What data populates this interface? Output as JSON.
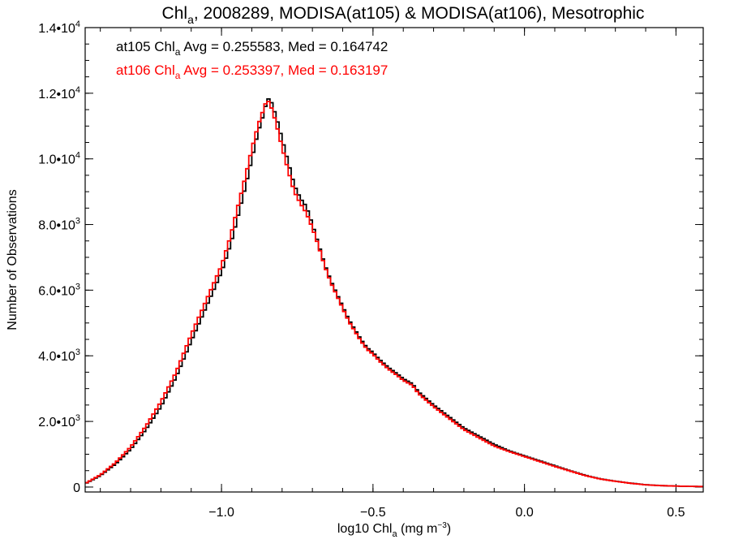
{
  "chart_data": {
    "type": "line",
    "title": {
      "pre": "Chl",
      "sub": "a",
      "post": ", 2008289, MODISA(at105) & MODISA(at106), Mesotrophic"
    },
    "xlabel": {
      "pre": "log10 Chl",
      "sub": "a",
      "post": " (mg m",
      "sup": "−3",
      "end": ")"
    },
    "ylabel": "Number of Observations",
    "xlim": [
      -1.45,
      0.59
    ],
    "ylim": [
      -150,
      14000
    ],
    "x_ticks": [
      {
        "value": -1.0,
        "label": "−1.0"
      },
      {
        "value": -0.5,
        "label": "−0.5"
      },
      {
        "value": 0.0,
        "label": "0.0"
      },
      {
        "value": 0.5,
        "label": "0.5"
      }
    ],
    "x_minor_step": 0.1,
    "y_ticks": [
      {
        "value": 0,
        "base": "0",
        "exp": ""
      },
      {
        "value": 2000,
        "base": "2.0•10",
        "exp": "3"
      },
      {
        "value": 4000,
        "base": "4.0•10",
        "exp": "3"
      },
      {
        "value": 6000,
        "base": "6.0•10",
        "exp": "3"
      },
      {
        "value": 8000,
        "base": "8.0•10",
        "exp": "3"
      },
      {
        "value": 10000,
        "base": "1.0•10",
        "exp": "4"
      },
      {
        "value": 12000,
        "base": "1.2•10",
        "exp": "4"
      },
      {
        "value": 14000,
        "base": "1.4•10",
        "exp": "4"
      }
    ],
    "y_minor_step": 500,
    "annotations": [
      {
        "pre": "at105 Chl",
        "sub": "a",
        "post": " Avg = 0.255583, Med = 0.164742",
        "color": "#000000"
      },
      {
        "pre": "at106 Chl",
        "sub": "a",
        "post": " Avg = 0.253397, Med = 0.163197",
        "color": "#ff0000"
      }
    ],
    "step": 0.01,
    "series": [
      {
        "color": "#000000",
        "x": [
          -1.45,
          -1.4,
          -1.35,
          -1.3,
          -1.25,
          -1.2,
          -1.15,
          -1.1,
          -1.05,
          -1.0,
          -0.97,
          -0.95,
          -0.92,
          -0.9,
          -0.88,
          -0.86,
          -0.85,
          -0.84,
          -0.82,
          -0.8,
          -0.78,
          -0.76,
          -0.74,
          -0.72,
          -0.7,
          -0.68,
          -0.66,
          -0.64,
          -0.62,
          -0.6,
          -0.58,
          -0.56,
          -0.54,
          -0.52,
          -0.5,
          -0.48,
          -0.45,
          -0.42,
          -0.4,
          -0.37,
          -0.35,
          -0.3,
          -0.25,
          -0.2,
          -0.15,
          -0.1,
          -0.05,
          0.0,
          0.05,
          0.1,
          0.15,
          0.2,
          0.25,
          0.3,
          0.35,
          0.4,
          0.45,
          0.5,
          0.55,
          0.59
        ],
        "values": [
          100,
          350,
          700,
          1150,
          1750,
          2450,
          3350,
          4450,
          5500,
          6550,
          7400,
          8100,
          9200,
          10000,
          10800,
          11400,
          11800,
          11850,
          11300,
          10600,
          9900,
          9200,
          8800,
          8550,
          8000,
          7400,
          6800,
          6300,
          5900,
          5500,
          5100,
          4800,
          4500,
          4250,
          4100,
          3900,
          3650,
          3450,
          3300,
          3150,
          2900,
          2500,
          2150,
          1800,
          1550,
          1300,
          1100,
          950,
          800,
          650,
          500,
          360,
          250,
          180,
          120,
          70,
          45,
          30,
          20,
          15
        ]
      },
      {
        "color": "#ff0000",
        "x": [
          -1.45,
          -1.4,
          -1.35,
          -1.3,
          -1.25,
          -1.2,
          -1.15,
          -1.1,
          -1.05,
          -1.0,
          -0.97,
          -0.95,
          -0.92,
          -0.9,
          -0.88,
          -0.86,
          -0.85,
          -0.84,
          -0.82,
          -0.8,
          -0.78,
          -0.76,
          -0.74,
          -0.72,
          -0.7,
          -0.68,
          -0.66,
          -0.64,
          -0.62,
          -0.6,
          -0.58,
          -0.56,
          -0.54,
          -0.52,
          -0.5,
          -0.48,
          -0.45,
          -0.42,
          -0.4,
          -0.37,
          -0.35,
          -0.3,
          -0.25,
          -0.2,
          -0.15,
          -0.1,
          -0.05,
          0.0,
          0.05,
          0.1,
          0.15,
          0.2,
          0.25,
          0.3,
          0.35,
          0.4,
          0.45,
          0.5,
          0.55,
          0.59
        ],
        "values": [
          110,
          370,
          740,
          1220,
          1850,
          2600,
          3500,
          4650,
          5700,
          6750,
          7650,
          8400,
          9500,
          10300,
          11000,
          11550,
          11800,
          11700,
          11100,
          10350,
          9650,
          9000,
          8650,
          8350,
          7900,
          7350,
          6750,
          6250,
          5850,
          5450,
          5050,
          4750,
          4450,
          4200,
          4050,
          3850,
          3600,
          3400,
          3250,
          3100,
          2850,
          2450,
          2100,
          1750,
          1500,
          1250,
          1080,
          930,
          780,
          630,
          490,
          350,
          245,
          175,
          115,
          68,
          44,
          30,
          20,
          15
        ]
      }
    ]
  }
}
